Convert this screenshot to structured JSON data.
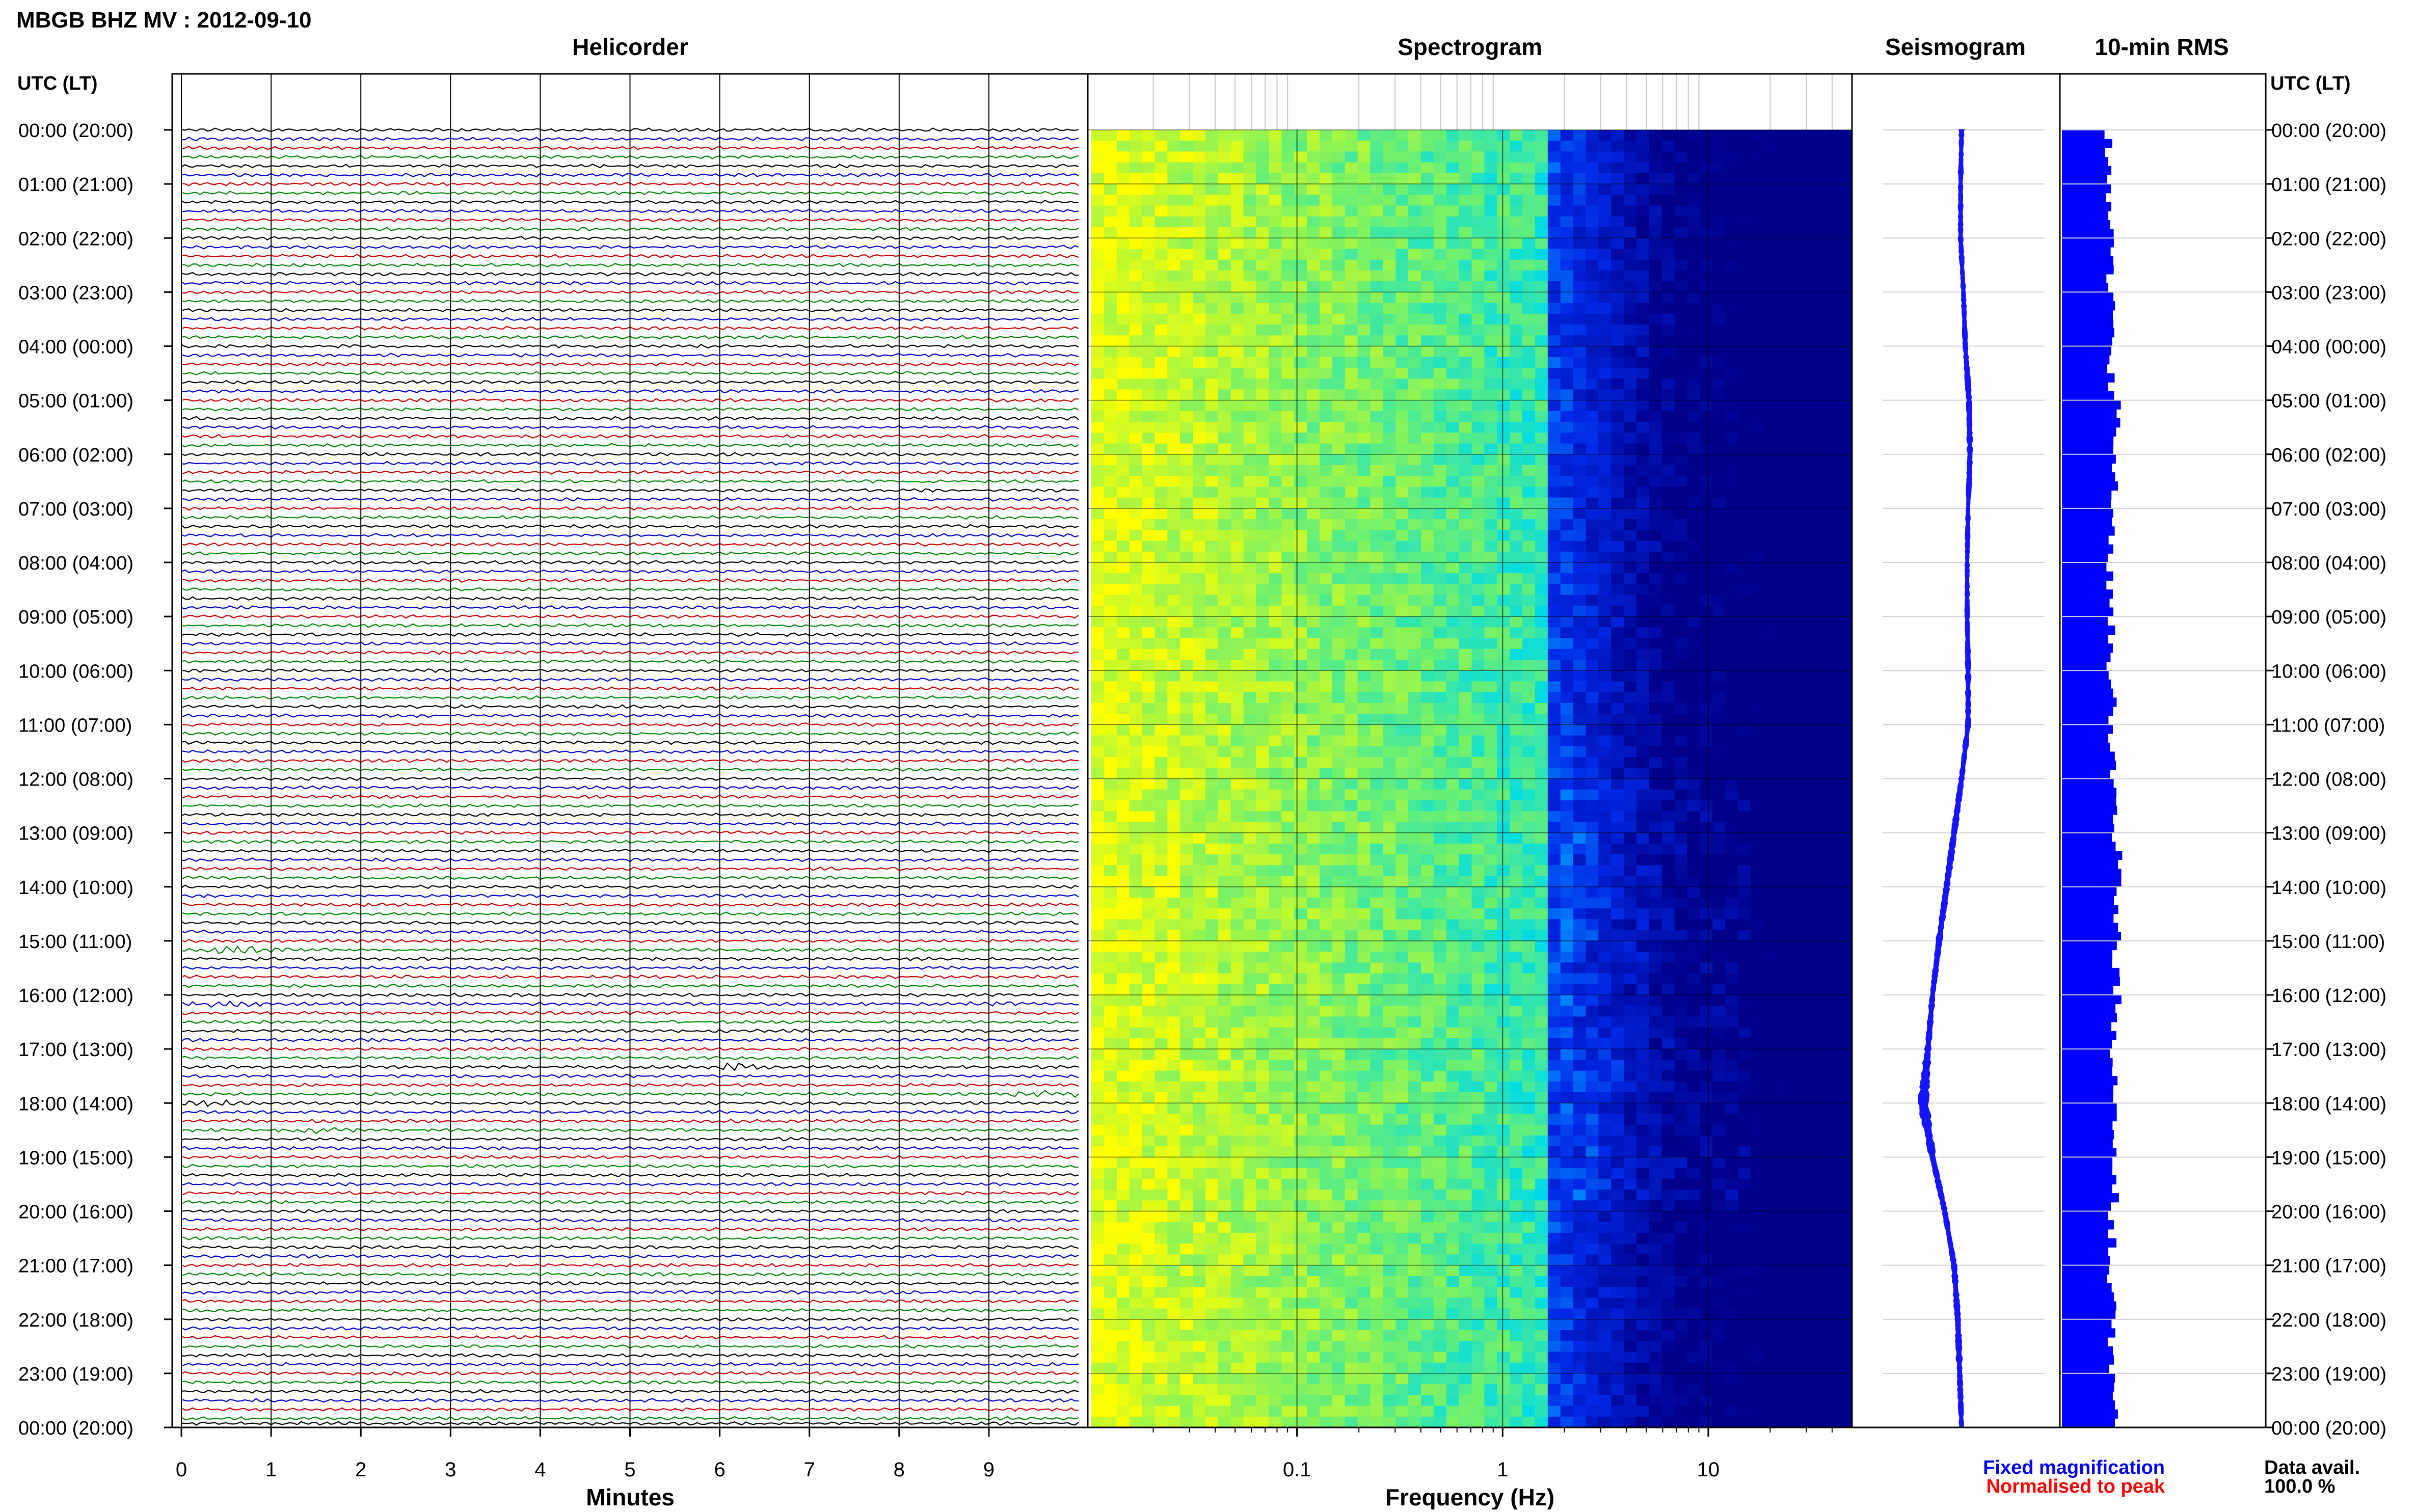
{
  "title": "MBGB BHZ MV : 2012-09-10",
  "panels": {
    "helicorder": "Helicorder",
    "spectrogram": "Spectrogram",
    "seismogram": "Seismogram",
    "rms": "10-min RMS"
  },
  "utc_header": "UTC (LT)",
  "hour_labels": [
    "00:00 (20:00)",
    "01:00 (21:00)",
    "02:00 (22:00)",
    "03:00 (23:00)",
    "04:00 (00:00)",
    "05:00 (01:00)",
    "06:00 (02:00)",
    "07:00 (03:00)",
    "08:00 (04:00)",
    "09:00 (05:00)",
    "10:00 (06:00)",
    "11:00 (07:00)",
    "12:00 (08:00)",
    "13:00 (09:00)",
    "14:00 (10:00)",
    "15:00 (11:00)",
    "16:00 (12:00)",
    "17:00 (13:00)",
    "18:00 (14:00)",
    "19:00 (15:00)",
    "20:00 (16:00)",
    "21:00 (17:00)",
    "22:00 (18:00)",
    "23:00 (19:00)",
    "00:00 (20:00)"
  ],
  "legend": {
    "fixed": "Fixed magnification",
    "normalised": "Normalised to peak",
    "fixed_color": "#0000ff",
    "normalised_color": "#ff0000"
  },
  "availability": {
    "label": "Data avail.",
    "value": "100.0 %"
  },
  "colors": {
    "trace_cycle": [
      "#000000",
      "#0000cc",
      "#cc0000",
      "#008800"
    ],
    "spectrogram_low": "#00008b",
    "spectrogram_high": "#ffff00",
    "rms_bar": "#0000ff"
  },
  "chart_data": [
    {
      "type": "line",
      "name": "helicorder",
      "xlabel": "Minutes",
      "x_ticks": [
        "0",
        "1",
        "2",
        "3",
        "4",
        "5",
        "6",
        "7",
        "8",
        "9"
      ],
      "xlim": [
        0,
        10
      ],
      "rows_per_hour": 6,
      "row_minutes": 10,
      "events": [
        {
          "hour": 15.2,
          "minute": 0.7,
          "amplitude": 2.2,
          "color_index": 1
        },
        {
          "hour": 16.2,
          "minute": 0.5,
          "amplitude": 1.2,
          "color_index": 3
        },
        {
          "hour": 16.2,
          "minute": 9.0,
          "amplitude": 1.0,
          "color_index": 1
        },
        {
          "hour": 17.3,
          "minute": 6.3,
          "amplitude": 1.8,
          "color_index": 0
        },
        {
          "hour": 17.8,
          "minute": 9.7,
          "amplitude": 1.6,
          "color_index": 3
        },
        {
          "hour": 18.0,
          "minute": 0.3,
          "amplitude": 1.4,
          "color_index": 0
        },
        {
          "hour": 18.5,
          "minute": 1.5,
          "amplitude": 1.0,
          "color_index": 3
        }
      ]
    },
    {
      "type": "heatmap",
      "name": "spectrogram",
      "xlabel": "Frequency (Hz)",
      "x_scale": "log",
      "xlim": [
        0.01,
        50
      ],
      "x_ticks": [
        {
          "value": 0.1,
          "label": "0.1"
        },
        {
          "value": 1,
          "label": "1"
        },
        {
          "value": 10,
          "label": "10"
        }
      ],
      "ylim_hours": [
        0,
        24
      ]
    },
    {
      "type": "line",
      "name": "seismogram",
      "hours": [
        0,
        1,
        2,
        3,
        4,
        5,
        6,
        7,
        8,
        9,
        10,
        11,
        12,
        13,
        14,
        15,
        16,
        17,
        18,
        19,
        20,
        21,
        22,
        23,
        24
      ],
      "offset": [
        0.06,
        0.05,
        0.05,
        0.08,
        0.1,
        0.14,
        0.15,
        0.13,
        0.12,
        0.12,
        0.13,
        0.13,
        0.06,
        -0.02,
        -0.1,
        -0.18,
        -0.25,
        -0.3,
        -0.35,
        -0.25,
        -0.12,
        -0.02,
        0.02,
        0.04,
        0.06
      ],
      "amplitude": [
        0.5,
        0.5,
        0.5,
        0.5,
        0.5,
        0.6,
        0.6,
        0.5,
        0.5,
        0.5,
        0.6,
        0.6,
        0.6,
        0.7,
        0.7,
        0.7,
        0.6,
        0.7,
        1.4,
        0.7,
        0.6,
        0.6,
        0.7,
        0.6,
        0.5
      ],
      "xlim": [
        -1,
        1
      ]
    },
    {
      "type": "bar",
      "name": "rms",
      "orientation": "horizontal",
      "interval_minutes": 10,
      "hourly_rms": [
        0.82,
        0.84,
        0.83,
        0.85,
        0.86,
        0.95,
        0.92,
        0.88,
        0.86,
        0.85,
        0.87,
        0.88,
        0.93,
        0.96,
        0.94,
        0.93,
        0.95,
        0.92,
        0.9,
        0.92,
        0.88,
        0.87,
        0.88,
        0.92,
        0.93
      ],
      "xlim": [
        0,
        3.5
      ]
    }
  ]
}
